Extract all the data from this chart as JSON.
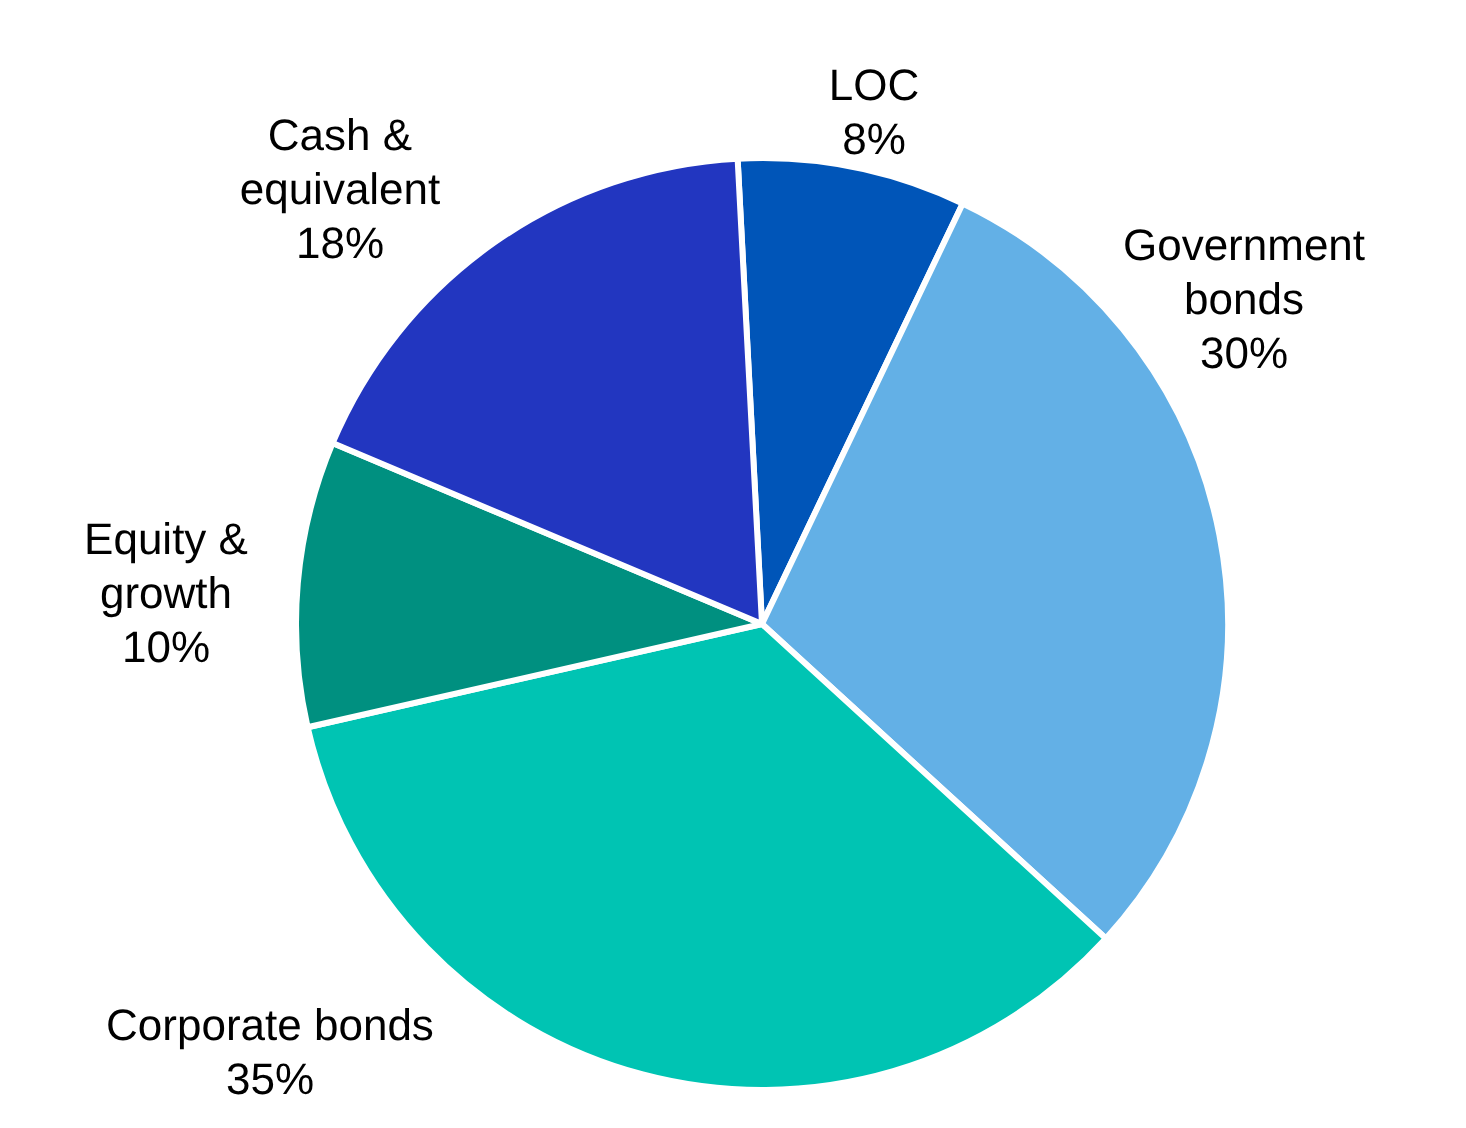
{
  "chart_data": {
    "type": "pie",
    "categories": [
      "LOC",
      "Government bonds",
      "Corporate bonds",
      "Equity & growth",
      "Cash & equivalent"
    ],
    "values": [
      8,
      30,
      35,
      10,
      18
    ],
    "colors": [
      "#0055b8",
      "#63b0e6",
      "#00c4b3",
      "#009080",
      "#2236c0"
    ],
    "value_labels": [
      "8%",
      "30%",
      "35%",
      "10%",
      "18%"
    ]
  }
}
